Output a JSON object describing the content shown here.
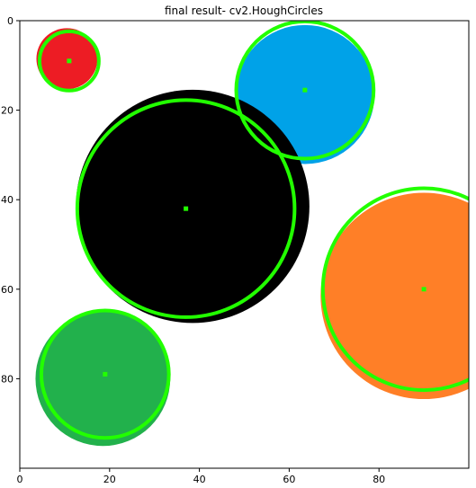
{
  "title": "final result- cv2.HoughCircles",
  "x_ticks": [
    "0",
    "20",
    "40",
    "60",
    "80"
  ],
  "y_ticks": [
    "0",
    "20",
    "40",
    "60",
    "80"
  ],
  "image": {
    "width_units": 100,
    "height_units": 100,
    "circles": [
      {
        "name": "red-circle",
        "fill": "#ed1c24",
        "cx": 10.5,
        "cy": 8.5,
        "r": 6.8
      },
      {
        "name": "blue-circle",
        "fill": "#00a2e8",
        "cx": 63.5,
        "cy": 16.5,
        "r": 15.5
      },
      {
        "name": "black-circle",
        "fill": "#000000",
        "cx": 38.5,
        "cy": 41.5,
        "r": 26.0
      },
      {
        "name": "orange-circle",
        "fill": "#ff7f27",
        "cx": 90.0,
        "cy": 61.5,
        "r": 23.0
      },
      {
        "name": "green-circle",
        "fill": "#22b14c",
        "cx": 18.5,
        "cy": 80.0,
        "r": 15.0
      }
    ],
    "detections": [
      {
        "cx": 11,
        "cy": 9,
        "r": 6.6
      },
      {
        "cx": 63.5,
        "cy": 15.5,
        "r": 15.3
      },
      {
        "cx": 37,
        "cy": 42,
        "r": 24.2
      },
      {
        "cx": 90,
        "cy": 60,
        "r": 22.5
      },
      {
        "cx": 19,
        "cy": 79,
        "r": 14.2
      }
    ],
    "detection_color": "#22ff00"
  }
}
